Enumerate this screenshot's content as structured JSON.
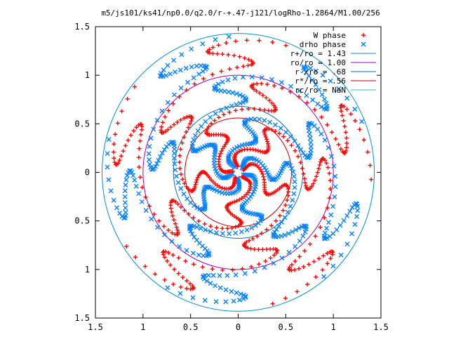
{
  "chart_data": {
    "type": "scatter",
    "title": "m5/js101/ks41/np0.0/q2.0/r-+.47-j121/logRho-1.2864/M1.00/256",
    "xlabel": "",
    "ylabel": "",
    "xlim": [
      -1.5,
      1.5
    ],
    "ylim": [
      -1.5,
      1.5
    ],
    "x_tick_labels": [
      "1.5",
      "1",
      "0.5",
      "0",
      "0.5",
      "1",
      "1.5"
    ],
    "x_tick_values": [
      -1.5,
      -1,
      -0.5,
      0,
      0.5,
      1,
      1.5
    ],
    "y_tick_labels": [
      "1.5",
      "1",
      "0.5",
      "0",
      "0.5",
      "1",
      "1.5"
    ],
    "y_tick_values": [
      1.5,
      1,
      0.5,
      0,
      -0.5,
      -1,
      -1.5
    ],
    "grid": false,
    "legend_position": "top-right",
    "series": [
      {
        "name": "W phase",
        "marker": "plus",
        "color": "#ff0000"
      },
      {
        "name": "drho phase",
        "marker": "cross",
        "color": "#0080ff"
      }
    ],
    "circles": [
      {
        "name": "r+/ro = 1.43",
        "radius": 1.43,
        "color": "#0090d0"
      },
      {
        "name": "ro/ro = 1.00",
        "radius": 1.0,
        "color": "#a000c0"
      },
      {
        "name": "r-/ro = .68",
        "radius": 0.68,
        "color": "#0070c0"
      },
      {
        "name": "r*/ro = .56",
        "radius": 0.56,
        "color": "#c00000"
      },
      {
        "name": "rc/ro = NaN",
        "radius": null,
        "color": "#30c0c0"
      }
    ],
    "w_phase": {
      "arms": 5,
      "points_per_arm": 110,
      "r_min": 0.06,
      "r_max": 1.4,
      "base_angle_deg": 95,
      "twist_deg": 170,
      "wobble_deg": 22,
      "wobble_freq": 7
    },
    "drho_phase": {
      "arms": 5,
      "points_per_arm": 110,
      "r_min": 0.06,
      "r_max": 1.4,
      "base_angle_deg": 120,
      "twist_deg": 170,
      "wobble_deg": 22,
      "wobble_freq": 7
    },
    "legend_samples": {
      "w_phase": {
        "x": 1.28,
        "y": 1.42
      },
      "drho_phase": {
        "x": 1.28,
        "y": 1.32
      }
    }
  },
  "legend": {
    "entries": [
      {
        "label": "W phase",
        "key": "w"
      },
      {
        "label": "drho phase",
        "key": "d"
      },
      {
        "label": "r+/ro = 1.43",
        "key": "c0"
      },
      {
        "label": "ro/ro = 1.00",
        "key": "c1"
      },
      {
        "label": "r-/ro = .68",
        "key": "c2"
      },
      {
        "label": "r*/ro = .56",
        "key": "c3"
      },
      {
        "label": "rc/ro = NaN",
        "key": "c4"
      }
    ]
  }
}
